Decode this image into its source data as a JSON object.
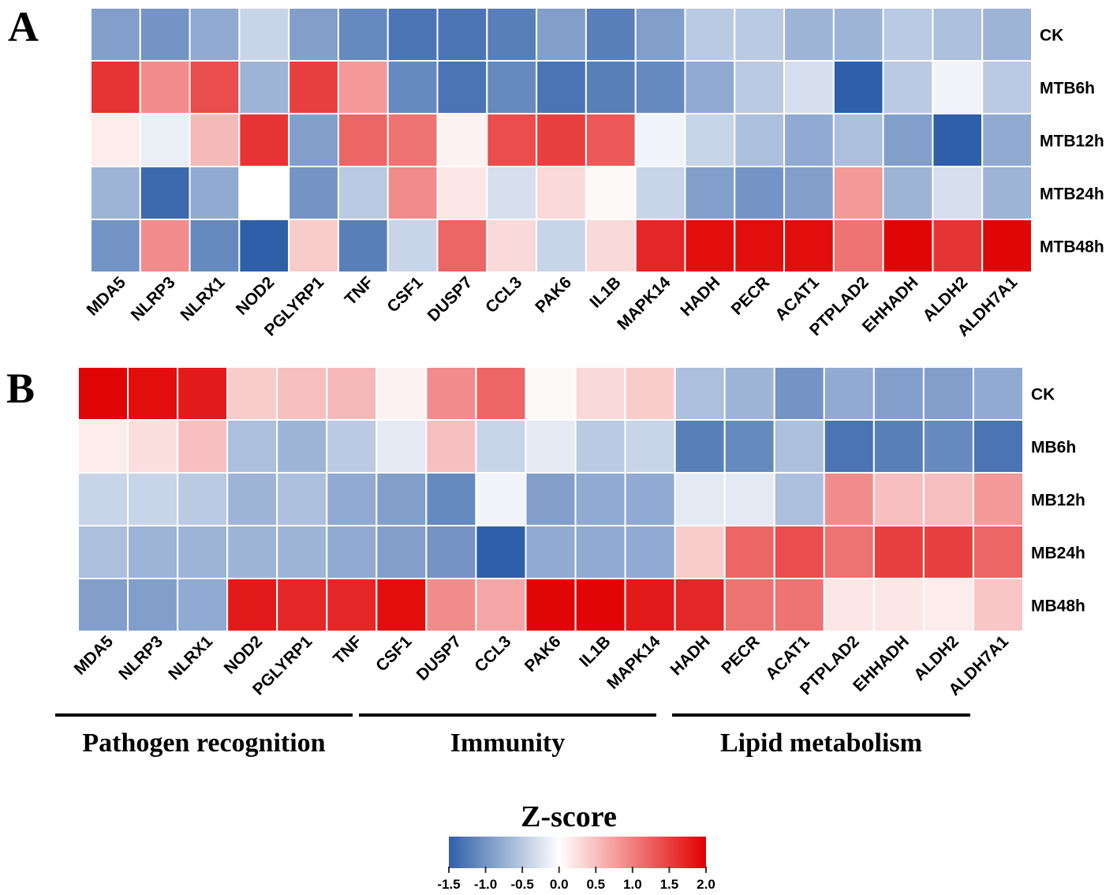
{
  "chart_data": [
    {
      "type": "heatmap",
      "panel_label": "A",
      "columns": [
        "MDA5",
        "NLRP3",
        "NLRX1",
        "NOD2",
        "PGLYRP1",
        "TNF",
        "CSF1",
        "DUSP7",
        "CCL3",
        "PAK6",
        "IL1B",
        "MAPK14",
        "HADH",
        "PECR",
        "ACAT1",
        "PTPLAD2",
        "EHHADH",
        "ALDH2",
        "ALDH7A1"
      ],
      "rows": [
        "CK",
        "MTB6h",
        "MTB12h",
        "MTB24h",
        "MTB48h"
      ],
      "values": [
        [
          -0.9,
          -1.0,
          -0.8,
          -0.4,
          -0.9,
          -1.1,
          -1.3,
          -1.3,
          -1.2,
          -0.9,
          -1.2,
          -0.9,
          -0.5,
          -0.5,
          -0.7,
          -0.7,
          -0.5,
          -0.6,
          -0.7
        ],
        [
          1.6,
          0.9,
          1.4,
          -0.7,
          1.5,
          0.8,
          -1.1,
          -1.3,
          -1.1,
          -1.3,
          -1.2,
          -1.1,
          -0.8,
          -0.5,
          -0.3,
          -1.5,
          -0.5,
          -0.1,
          -0.5
        ],
        [
          0.15,
          -0.15,
          0.55,
          1.6,
          -0.9,
          1.2,
          1.1,
          0.1,
          1.4,
          1.5,
          1.3,
          -0.1,
          -0.4,
          -0.6,
          -0.8,
          -0.6,
          -0.9,
          -1.5,
          -0.8
        ],
        [
          -0.7,
          -1.4,
          -0.8,
          0.0,
          -1.0,
          -0.5,
          0.9,
          0.2,
          -0.3,
          0.3,
          0.05,
          -0.4,
          -0.9,
          -1.0,
          -0.9,
          0.8,
          -0.7,
          -0.3,
          -0.7
        ],
        [
          -1.0,
          0.9,
          -1.1,
          -1.5,
          0.4,
          -1.2,
          -0.4,
          1.2,
          0.3,
          -0.4,
          0.3,
          1.7,
          1.9,
          1.9,
          1.9,
          1.1,
          1.95,
          1.6,
          1.95
        ]
      ]
    },
    {
      "type": "heatmap",
      "panel_label": "B",
      "columns": [
        "MDA5",
        "NLRP3",
        "NLRX1",
        "NOD2",
        "PGLYRP1",
        "TNF",
        "CSF1",
        "DUSP7",
        "CCL3",
        "PAK6",
        "IL1B",
        "MAPK14",
        "HADH",
        "PECR",
        "ACAT1",
        "PTPLAD2",
        "EHHADH",
        "ALDH2",
        "ALDH7A1"
      ],
      "rows": [
        "CK",
        "MB6h",
        "MB12h",
        "MB24h",
        "MB48h"
      ],
      "values": [
        [
          1.95,
          1.9,
          1.8,
          0.4,
          0.5,
          0.55,
          0.1,
          0.9,
          1.2,
          0.05,
          0.3,
          0.4,
          -0.6,
          -0.7,
          -1.0,
          -0.8,
          -0.9,
          -0.9,
          -0.8
        ],
        [
          0.15,
          0.25,
          0.5,
          -0.6,
          -0.7,
          -0.5,
          -0.2,
          0.5,
          -0.4,
          -0.2,
          -0.5,
          -0.4,
          -1.2,
          -1.1,
          -0.6,
          -1.3,
          -1.2,
          -1.1,
          -1.3
        ],
        [
          -0.4,
          -0.4,
          -0.5,
          -0.7,
          -0.6,
          -0.8,
          -0.9,
          -1.1,
          -0.1,
          -0.9,
          -0.8,
          -0.8,
          -0.2,
          -0.2,
          -0.6,
          0.9,
          0.5,
          0.5,
          0.8
        ],
        [
          -0.6,
          -0.7,
          -0.7,
          -0.7,
          -0.7,
          -0.8,
          -0.9,
          -1.0,
          -1.5,
          -0.8,
          -0.8,
          -0.8,
          0.4,
          1.2,
          1.4,
          1.1,
          1.5,
          1.5,
          1.2
        ],
        [
          -0.9,
          -0.9,
          -0.8,
          1.8,
          1.7,
          1.7,
          1.9,
          0.9,
          0.7,
          1.95,
          1.95,
          1.8,
          1.7,
          1.1,
          1.1,
          0.2,
          0.2,
          0.15,
          0.45
        ]
      ],
      "groups": [
        {
          "label": "Pathogen recognition",
          "columns": [
            "MDA5",
            "NLRP3",
            "NLRX1",
            "NOD2",
            "PGLYRP1",
            "TNF"
          ]
        },
        {
          "label": "Immunity",
          "columns": [
            "CSF1",
            "DUSP7",
            "CCL3",
            "PAK6",
            "IL1B",
            "MAPK14"
          ]
        },
        {
          "label": "Lipid metabolism",
          "columns": [
            "HADH",
            "PECR",
            "ACAT1",
            "PTPLAD2",
            "EHHADH",
            "ALDH2",
            "ALDH7A1"
          ]
        }
      ]
    }
  ],
  "colorbar": {
    "title": "Z-score",
    "range": [
      -1.5,
      2.0
    ],
    "ticks": [
      "-1.5",
      "-1.0",
      "-0.5",
      "0.0",
      "0.5",
      "1.0",
      "1.5",
      "2.0"
    ],
    "colors": {
      "low": "#2f5fa8",
      "mid": "#ffffff",
      "high": "#e00000"
    }
  }
}
